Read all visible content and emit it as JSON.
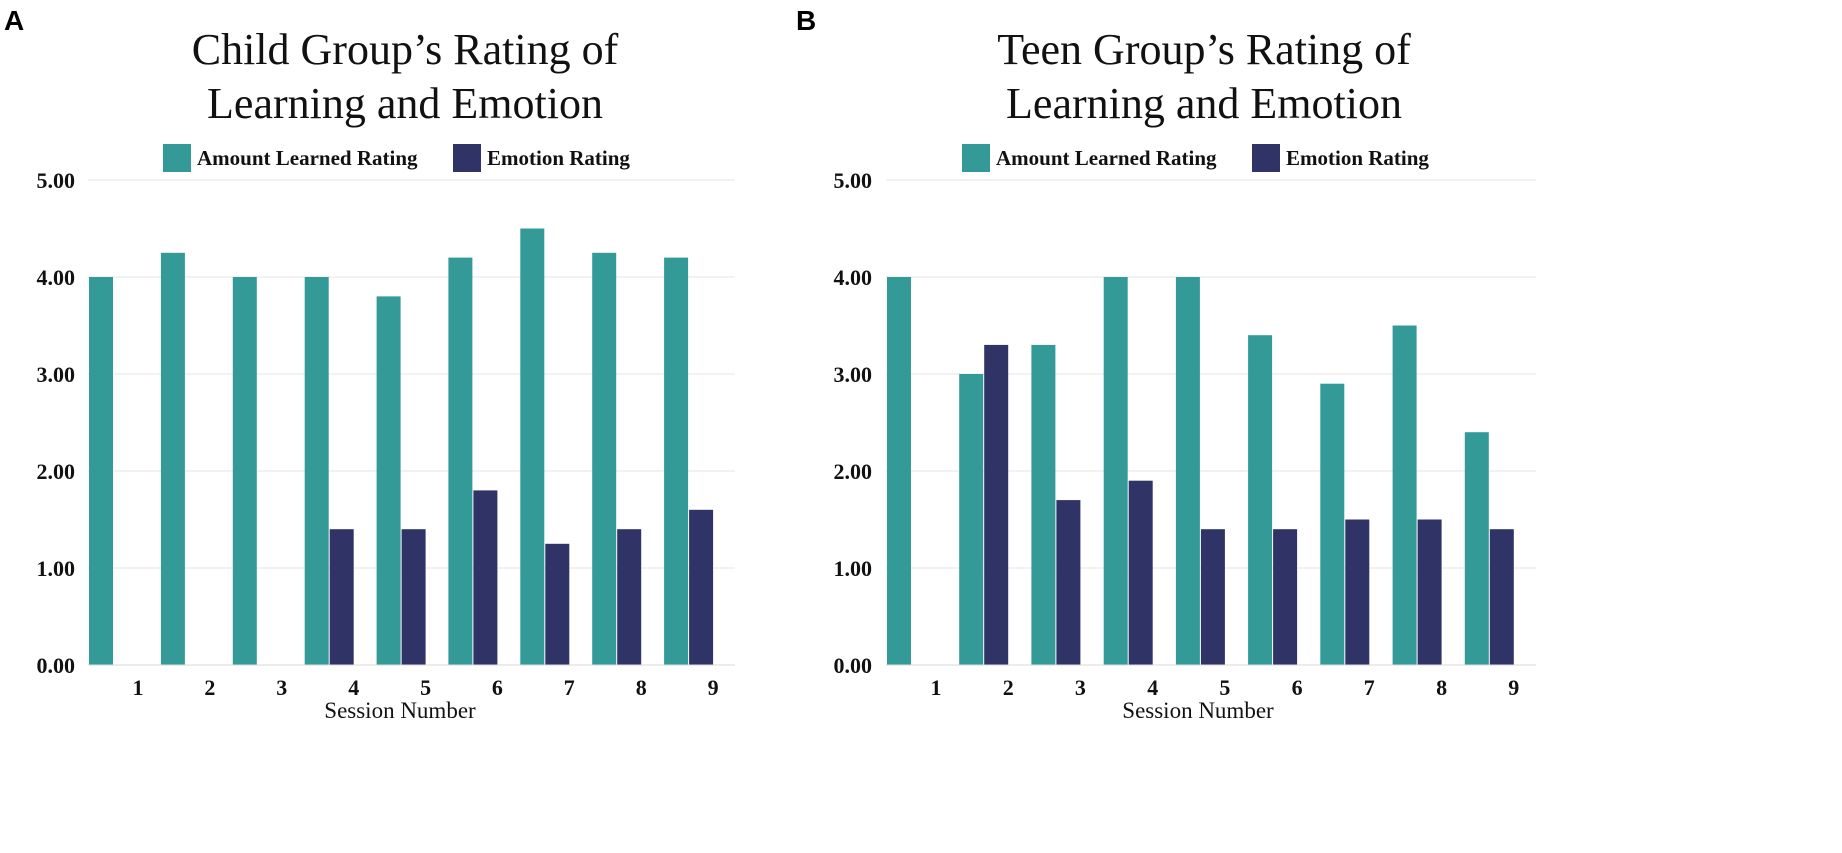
{
  "colors": {
    "series_a": "#339a98",
    "series_b": "#2f3366"
  },
  "chart_data": [
    {
      "panel": "A",
      "type": "bar",
      "title_lines": [
        "Child Group’s Rating of",
        "Learning and Emotion"
      ],
      "xlabel": "Session Number",
      "ylabel": "",
      "ylim": [
        0,
        5
      ],
      "yticks": [
        "0.00",
        "1.00",
        "2.00",
        "3.00",
        "4.00",
        "5.00"
      ],
      "categories": [
        "1",
        "2",
        "3",
        "4",
        "5",
        "6",
        "7",
        "8",
        "9"
      ],
      "series": [
        {
          "name": "Amount Learned Rating",
          "values": [
            4.0,
            4.25,
            4.0,
            4.0,
            3.8,
            4.2,
            4.5,
            4.25,
            4.2
          ]
        },
        {
          "name": "Emotion Rating",
          "values": [
            0,
            0,
            0,
            1.4,
            1.4,
            1.8,
            1.25,
            1.4,
            1.6
          ]
        }
      ],
      "legend": "top-center",
      "grid": true
    },
    {
      "panel": "B",
      "type": "bar",
      "title_lines": [
        "Teen Group’s Rating of",
        "Learning and Emotion"
      ],
      "xlabel": "Session Number",
      "ylabel": "",
      "ylim": [
        0,
        5
      ],
      "yticks": [
        "0.00",
        "1.00",
        "2.00",
        "3.00",
        "4.00",
        "5.00"
      ],
      "categories": [
        "1",
        "2",
        "3",
        "4",
        "5",
        "6",
        "7",
        "8",
        "9"
      ],
      "series": [
        {
          "name": "Amount Learned Rating",
          "values": [
            4.0,
            3.0,
            3.3,
            4.0,
            4.0,
            3.4,
            2.9,
            3.5,
            2.4
          ]
        },
        {
          "name": "Emotion Rating",
          "values": [
            0,
            3.3,
            1.7,
            1.9,
            1.4,
            1.4,
            1.5,
            1.5,
            1.4
          ]
        }
      ],
      "legend": "top-center",
      "grid": true
    }
  ]
}
